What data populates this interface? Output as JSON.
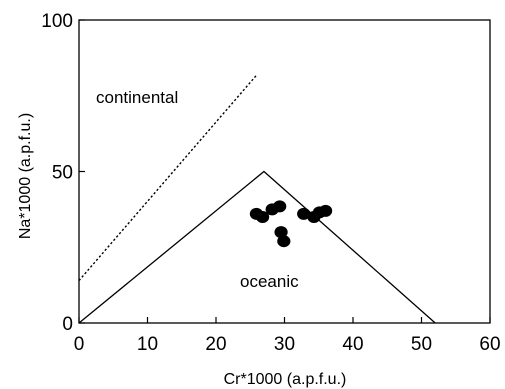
{
  "chart_data": {
    "type": "scatter",
    "xlabel": "Cr*1000 (a.p.f.u.)",
    "ylabel": "Na*1000 (a.p.f.u.)",
    "xlim": [
      0,
      60
    ],
    "ylim": [
      0,
      100
    ],
    "xticks": [
      "0",
      "10",
      "20",
      "30",
      "40",
      "50",
      "60"
    ],
    "yticks": [
      "0",
      "50",
      "100"
    ],
    "grid": false,
    "legend": "none",
    "regions": [
      {
        "label": "continental"
      },
      {
        "label": "oceanic"
      }
    ],
    "boundary_lines": [
      {
        "style": "solid",
        "points": [
          [
            0,
            0
          ],
          [
            27,
            50
          ],
          [
            52,
            0
          ]
        ]
      },
      {
        "style": "dotted",
        "points": [
          [
            0,
            14
          ],
          [
            26,
            82
          ]
        ]
      }
    ],
    "points": [
      {
        "x": 25.9,
        "y": 36
      },
      {
        "x": 26.8,
        "y": 35
      },
      {
        "x": 28.2,
        "y": 37.5
      },
      {
        "x": 29.3,
        "y": 38.5
      },
      {
        "x": 29.5,
        "y": 30
      },
      {
        "x": 29.9,
        "y": 27
      },
      {
        "x": 32.8,
        "y": 36
      },
      {
        "x": 34.3,
        "y": 35
      },
      {
        "x": 35.1,
        "y": 36.5
      },
      {
        "x": 36.0,
        "y": 37
      }
    ],
    "marker_color": "#000000"
  }
}
